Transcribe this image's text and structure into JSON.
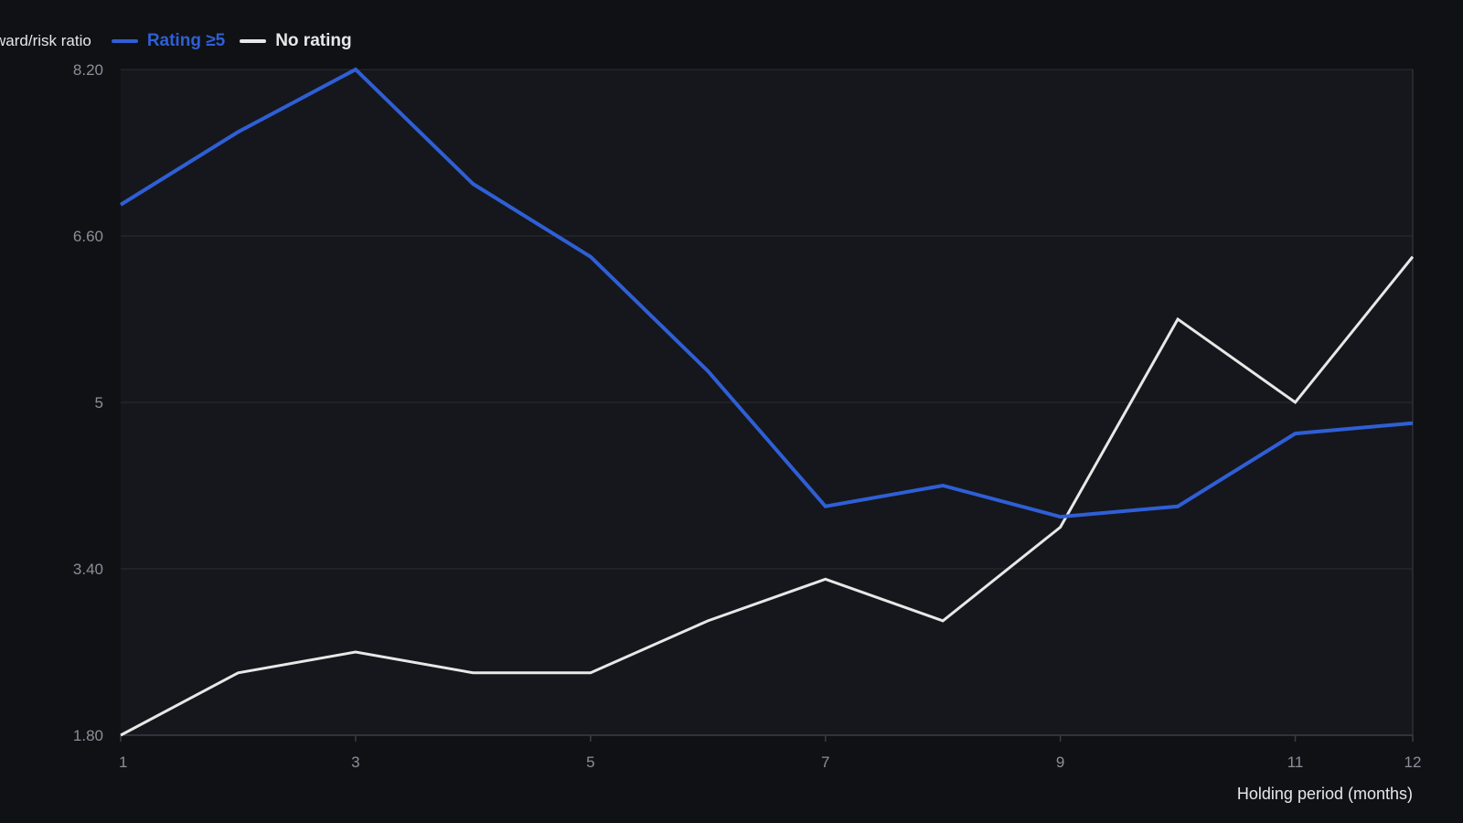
{
  "chart_data": {
    "type": "line",
    "ylabel": "ward/risk ratio",
    "xlabel": "Holding period (months)",
    "x": [
      1,
      2,
      3,
      4,
      5,
      6,
      7,
      8,
      9,
      10,
      11,
      12
    ],
    "xticks": [
      "1",
      "3",
      "5",
      "7",
      "9",
      "11",
      "12"
    ],
    "yticks": [
      "1.80",
      "3.40",
      "5",
      "6.60",
      "8.20"
    ],
    "ylim": [
      1.8,
      8.2
    ],
    "xlim": [
      1,
      12
    ],
    "grid": "horizontal",
    "legend_position": "top-left",
    "series": [
      {
        "name": "Rating ≥5",
        "color": "#2f5fd6",
        "values": [
          6.9,
          7.6,
          8.2,
          7.1,
          6.4,
          5.3,
          4.0,
          4.2,
          3.9,
          4.0,
          4.7,
          4.8
        ]
      },
      {
        "name": "No rating",
        "color": "#e8e8e8",
        "values": [
          1.8,
          2.4,
          2.6,
          2.4,
          2.4,
          2.9,
          3.3,
          2.9,
          3.8,
          5.8,
          5.0,
          6.4
        ]
      }
    ]
  },
  "theme": {
    "background": "#0f1115",
    "plot_background": "#15171c",
    "grid_color": "#2a2d34",
    "axis_color": "#3a3d45"
  }
}
